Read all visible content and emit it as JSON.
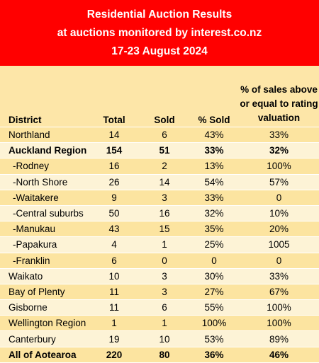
{
  "header": {
    "line1": "Residential Auction Results",
    "line2": "at auctions monitored by interest.co.nz",
    "line3": "17-23 August 2024"
  },
  "columns": {
    "district": "District",
    "total": "Total",
    "sold": "Sold",
    "pct_sold": "% Sold",
    "pct_above": "% of sales above or equal to rating valuation"
  },
  "rows": [
    {
      "district": "Northland",
      "total": "14",
      "sold": "6",
      "pct_sold": "43%",
      "pct_above": "33%",
      "bold": false,
      "sub": false
    },
    {
      "district": "Auckland Region",
      "total": "154",
      "sold": "51",
      "pct_sold": "33%",
      "pct_above": "32%",
      "bold": true,
      "sub": false
    },
    {
      "district": "-Rodney",
      "total": "16",
      "sold": "2",
      "pct_sold": "13%",
      "pct_above": "100%",
      "bold": false,
      "sub": true
    },
    {
      "district": "-North Shore",
      "total": "26",
      "sold": "14",
      "pct_sold": "54%",
      "pct_above": "57%",
      "bold": false,
      "sub": true
    },
    {
      "district": "-Waitakere",
      "total": "9",
      "sold": "3",
      "pct_sold": "33%",
      "pct_above": "0",
      "bold": false,
      "sub": true
    },
    {
      "district": "-Central suburbs",
      "total": "50",
      "sold": "16",
      "pct_sold": "32%",
      "pct_above": "10%",
      "bold": false,
      "sub": true
    },
    {
      "district": "-Manukau",
      "total": "43",
      "sold": "15",
      "pct_sold": "35%",
      "pct_above": "20%",
      "bold": false,
      "sub": true
    },
    {
      "district": "-Papakura",
      "total": "4",
      "sold": "1",
      "pct_sold": "25%",
      "pct_above": "1005",
      "bold": false,
      "sub": true
    },
    {
      "district": "-Franklin",
      "total": "6",
      "sold": "0",
      "pct_sold": "0",
      "pct_above": "0",
      "bold": false,
      "sub": true
    },
    {
      "district": "Waikato",
      "total": "10",
      "sold": "3",
      "pct_sold": "30%",
      "pct_above": "33%",
      "bold": false,
      "sub": false
    },
    {
      "district": "Bay of Plenty",
      "total": "11",
      "sold": "3",
      "pct_sold": "27%",
      "pct_above": "67%",
      "bold": false,
      "sub": false
    },
    {
      "district": "Gisborne",
      "total": "11",
      "sold": "6",
      "pct_sold": "55%",
      "pct_above": "100%",
      "bold": false,
      "sub": false
    },
    {
      "district": "Wellington Region",
      "total": "1",
      "sold": "1",
      "pct_sold": "100%",
      "pct_above": "100%",
      "bold": false,
      "sub": false
    },
    {
      "district": "Canterbury",
      "total": "19",
      "sold": "10",
      "pct_sold": "53%",
      "pct_above": "89%",
      "bold": false,
      "sub": false
    },
    {
      "district": "All of Aotearoa",
      "total": "220",
      "sold": "80",
      "pct_sold": "36%",
      "pct_above": "46%",
      "bold": true,
      "sub": false
    }
  ]
}
